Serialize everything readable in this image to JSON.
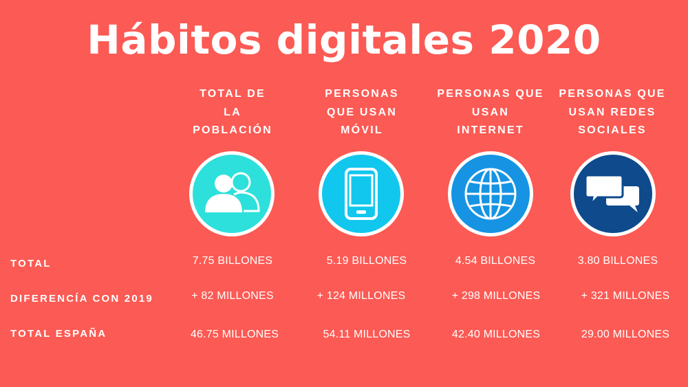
{
  "title": "Hábitos digitales 2020",
  "columns": [
    {
      "label": "TOTAL DE\nLA\nPOBLACIÓN",
      "icon": "people-icon",
      "circle_color": "#2de0db"
    },
    {
      "label": "PERSONAS\nQUE USAN\nMÓVIL",
      "icon": "smartphone-icon",
      "circle_color": "#12c7ee"
    },
    {
      "label": "PERSONAS QUE\nUSAN\nINTERNET",
      "icon": "globe-icon",
      "circle_color": "#1694e3"
    },
    {
      "label": "PERSONAS QUE\nUSAN REDES\nSOCIALES",
      "icon": "chat-bubbles-icon",
      "circle_color": "#0e4a8c"
    }
  ],
  "rows": [
    {
      "label": "TOTAL",
      "values": [
        "7.75 BILLONES",
        "5.19 BILLONES",
        "4.54 BILLONES",
        "3.80 BILLONES"
      ]
    },
    {
      "label": "DIFERENCÍA CON 2019",
      "values": [
        "+ 82 MILLONES",
        "+ 124 MILLONES",
        "+ 298 MILLONES",
        "+ 321 MILLONES"
      ]
    },
    {
      "label": "TOTAL ESPAÑA",
      "values": [
        "46.75 MILLONES",
        "54.11 MILLONES",
        "42.40 MILLONES",
        "29.00 MILLONES"
      ]
    }
  ],
  "colors": {
    "background": "#fc5a54",
    "text": "#ffffff"
  }
}
